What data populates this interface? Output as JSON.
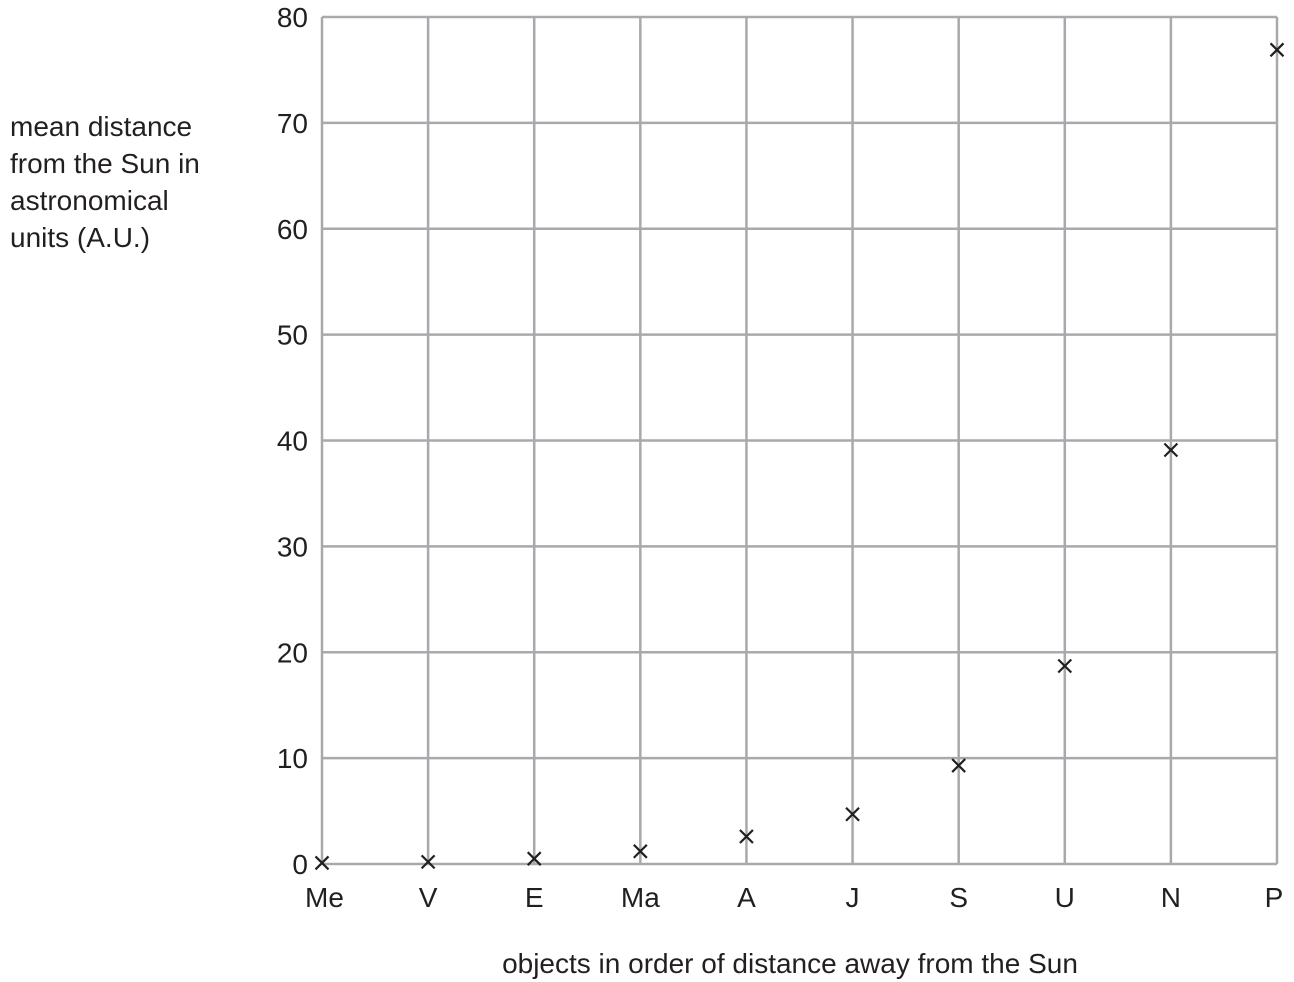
{
  "chart_data": {
    "type": "scatter",
    "title": "",
    "ylabel_lines": [
      "mean distance",
      "from the Sun in",
      "astronomical",
      "units (A.U.)"
    ],
    "xlabel": "objects in order of distance away from the Sun",
    "categories": [
      "Me",
      "V",
      "E",
      "Ma",
      "A",
      "J",
      "S",
      "U",
      "N",
      "P"
    ],
    "values": [
      0.1,
      0.2,
      0.5,
      1.2,
      2.6,
      4.7,
      9.3,
      18.7,
      39.1,
      76.9
    ],
    "ylim": [
      0,
      80
    ],
    "yticks": [
      0,
      10,
      20,
      30,
      40,
      50,
      60,
      70,
      80
    ],
    "marker": "x",
    "grid": true,
    "colors": {
      "grid": "#a7a9ac",
      "marker": "#231f20",
      "text": "#231f20"
    }
  }
}
